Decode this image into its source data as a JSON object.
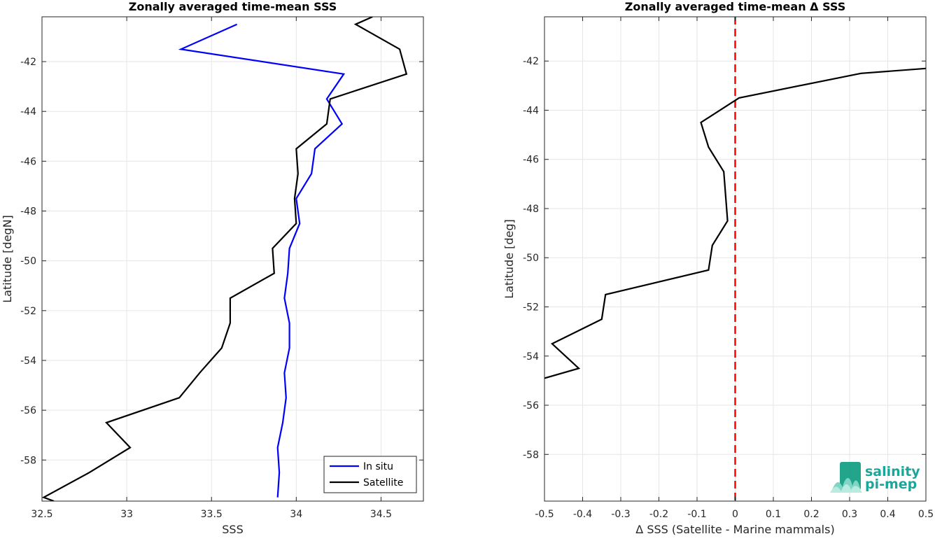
{
  "chart_data": [
    {
      "type": "line",
      "title": "Zonally averaged time-mean SSS",
      "xlabel": "SSS",
      "ylabel": "Latitude [degN]",
      "xlim": [
        32.5,
        34.75
      ],
      "ylim": [
        -59.65,
        -40.2
      ],
      "xticks": [
        "32.5",
        "33",
        "33.5",
        "34",
        "34.5"
      ],
      "xtick_values": [
        32.5,
        33,
        33.5,
        34,
        34.5
      ],
      "yticks": [
        "-42",
        "-44",
        "-46",
        "-48",
        "-50",
        "-52",
        "-54",
        "-56",
        "-58"
      ],
      "ytick_values": [
        -42,
        -44,
        -46,
        -48,
        -50,
        -52,
        -54,
        -56,
        -58
      ],
      "grid": true,
      "legend_position": "bottom-right",
      "series": [
        {
          "name": "In situ",
          "color": "#0000ff",
          "points": [
            {
              "x": 33.65,
              "y": -40.5
            },
            {
              "x": 33.32,
              "y": -41.5
            },
            {
              "x": 34.28,
              "y": -42.5
            },
            {
              "x": 34.18,
              "y": -43.5
            },
            {
              "x": 34.27,
              "y": -44.5
            },
            {
              "x": 34.11,
              "y": -45.5
            },
            {
              "x": 34.09,
              "y": -46.5
            },
            {
              "x": 34.0,
              "y": -47.5
            },
            {
              "x": 34.02,
              "y": -48.5
            },
            {
              "x": 33.96,
              "y": -49.5
            },
            {
              "x": 33.95,
              "y": -50.5
            },
            {
              "x": 33.93,
              "y": -51.5
            },
            {
              "x": 33.96,
              "y": -52.5
            },
            {
              "x": 33.96,
              "y": -53.5
            },
            {
              "x": 33.93,
              "y": -54.5
            },
            {
              "x": 33.94,
              "y": -55.5
            },
            {
              "x": 33.92,
              "y": -56.5
            },
            {
              "x": 33.89,
              "y": -57.5
            },
            {
              "x": 33.9,
              "y": -58.5
            },
            {
              "x": 33.89,
              "y": -59.5
            }
          ]
        },
        {
          "name": "Satellite",
          "color": "#000000",
          "points": [
            {
              "x": 34.45,
              "y": -40.2
            },
            {
              "x": 34.35,
              "y": -40.5
            },
            {
              "x": 34.61,
              "y": -41.5
            },
            {
              "x": 34.65,
              "y": -42.5
            },
            {
              "x": 34.2,
              "y": -43.5
            },
            {
              "x": 34.18,
              "y": -44.5
            },
            {
              "x": 34.0,
              "y": -45.5
            },
            {
              "x": 34.01,
              "y": -46.5
            },
            {
              "x": 33.99,
              "y": -47.5
            },
            {
              "x": 34.0,
              "y": -48.5
            },
            {
              "x": 33.86,
              "y": -49.5
            },
            {
              "x": 33.87,
              "y": -50.5
            },
            {
              "x": 33.61,
              "y": -51.5
            },
            {
              "x": 33.61,
              "y": -52.5
            },
            {
              "x": 33.56,
              "y": -53.5
            },
            {
              "x": 33.43,
              "y": -54.5
            },
            {
              "x": 33.31,
              "y": -55.5
            },
            {
              "x": 32.88,
              "y": -56.5
            },
            {
              "x": 33.02,
              "y": -57.5
            },
            {
              "x": 32.78,
              "y": -58.5
            },
            {
              "x": 32.51,
              "y": -59.5
            },
            {
              "x": 32.57,
              "y": -59.65
            }
          ]
        }
      ]
    },
    {
      "type": "line",
      "title": "Zonally averaged time-mean Δ SSS",
      "xlabel": "Δ SSS (Satellite - Marine mammals)",
      "ylabel": "Latitude [deg]",
      "xlim": [
        -0.5,
        0.5
      ],
      "ylim": [
        -59.9,
        -40.2
      ],
      "xticks": [
        "-0.5",
        "-0.4",
        "-0.3",
        "-0.2",
        "-0.1",
        "0",
        "0.1",
        "0.2",
        "0.3",
        "0.4",
        "0.5"
      ],
      "xtick_values": [
        -0.5,
        -0.4,
        -0.3,
        -0.2,
        -0.1,
        0,
        0.1,
        0.2,
        0.3,
        0.4,
        0.5
      ],
      "yticks": [
        "-42",
        "-44",
        "-46",
        "-48",
        "-50",
        "-52",
        "-54",
        "-56",
        "-58"
      ],
      "ytick_values": [
        -42,
        -44,
        -46,
        -48,
        -50,
        -52,
        -54,
        -56,
        -58
      ],
      "grid": true,
      "reference_line": {
        "x": 0,
        "color": "#ff0000",
        "style": "dashed"
      },
      "series": [
        {
          "color": "#000000",
          "points": [
            {
              "x": 0.5,
              "y": -42.3
            },
            {
              "x": 0.33,
              "y": -42.5
            },
            {
              "x": 0.01,
              "y": -43.5
            },
            {
              "x": -0.09,
              "y": -44.5
            },
            {
              "x": -0.07,
              "y": -45.5
            },
            {
              "x": -0.03,
              "y": -46.5
            },
            {
              "x": -0.02,
              "y": -48.5
            },
            {
              "x": -0.06,
              "y": -49.5
            },
            {
              "x": -0.07,
              "y": -50.5
            },
            {
              "x": -0.34,
              "y": -51.5
            },
            {
              "x": -0.35,
              "y": -52.5
            },
            {
              "x": -0.48,
              "y": -53.5
            },
            {
              "x": -0.41,
              "y": -54.5
            },
            {
              "x": -0.5,
              "y": -54.9
            }
          ]
        }
      ]
    }
  ],
  "logo": {
    "line1": "salinity",
    "line2": "pi-mep",
    "color": "#1aa79a"
  }
}
